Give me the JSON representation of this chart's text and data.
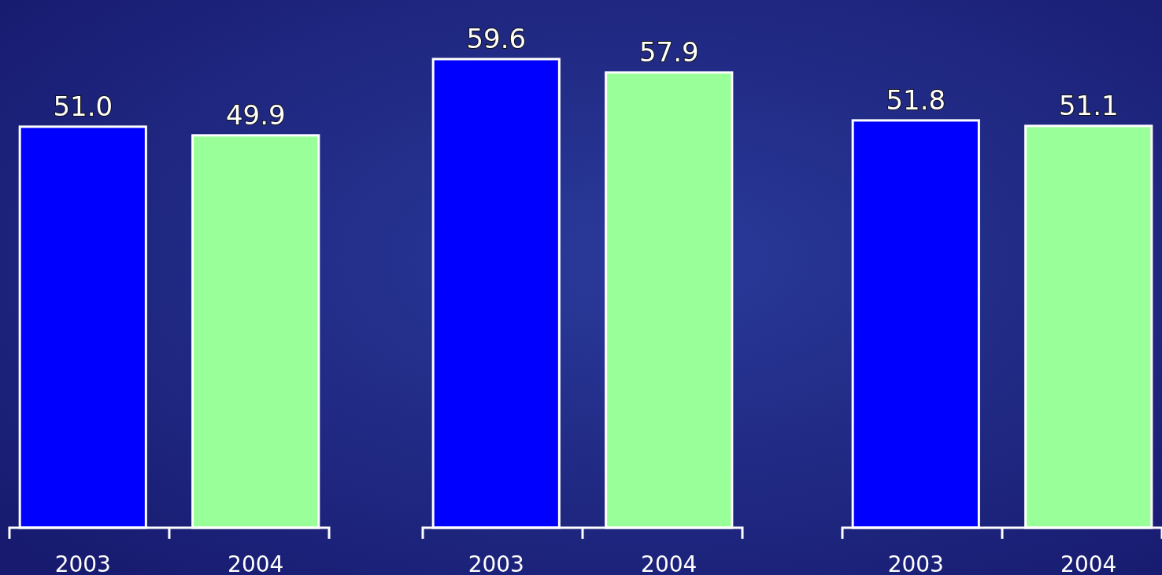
{
  "chart_data": [
    {
      "type": "bar",
      "categories": [
        "2003",
        "2004"
      ],
      "values": [
        51.0,
        49.9
      ],
      "value_labels": [
        "51.0",
        "49.9"
      ],
      "colors": [
        "#0000ff",
        "#99ff99"
      ],
      "tick_labels": "x"
    },
    {
      "type": "bar",
      "categories": [
        "2003",
        "2004"
      ],
      "values": [
        59.6,
        57.9
      ],
      "value_labels": [
        "59.6",
        "57.9"
      ],
      "colors": [
        "#0000ff",
        "#99ff99"
      ],
      "tick_labels": "x"
    },
    {
      "type": "bar",
      "categories": [
        "2003",
        "2004"
      ],
      "values": [
        51.8,
        51.1
      ],
      "value_labels": [
        "51.8",
        "51.1"
      ],
      "colors": [
        "#0000ff",
        "#99ff99"
      ],
      "tick_labels": "x"
    }
  ]
}
